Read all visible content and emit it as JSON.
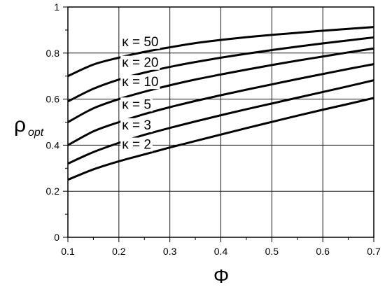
{
  "chart_data": {
    "type": "line",
    "title": "",
    "xlabel": "Φ",
    "ylabel_main": "ρ",
    "ylabel_sub": "opt",
    "xlim": [
      0.1,
      0.7
    ],
    "ylim": [
      0,
      1
    ],
    "grid": true,
    "x_ticks": [
      "0.1",
      "0.2",
      "0.3",
      "0.4",
      "0.5",
      "0.6",
      "0.7"
    ],
    "y_ticks": [
      "0",
      "0.2",
      "0.4",
      "0.6",
      "0.8",
      "1"
    ],
    "series": [
      {
        "name": "κ = 50",
        "x": [
          0.1,
          0.15,
          0.2,
          0.25,
          0.3,
          0.35,
          0.4,
          0.45,
          0.5,
          0.55,
          0.6,
          0.65,
          0.7
        ],
        "y": [
          0.7,
          0.75,
          0.78,
          0.805,
          0.825,
          0.843,
          0.857,
          0.869,
          0.879,
          0.888,
          0.897,
          0.905,
          0.913
        ]
      },
      {
        "name": "κ = 20",
        "x": [
          0.1,
          0.15,
          0.2,
          0.25,
          0.3,
          0.35,
          0.4,
          0.45,
          0.5,
          0.55,
          0.6,
          0.65,
          0.7
        ],
        "y": [
          0.59,
          0.645,
          0.685,
          0.715,
          0.74,
          0.761,
          0.78,
          0.797,
          0.813,
          0.828,
          0.842,
          0.855,
          0.868
        ]
      },
      {
        "name": "κ = 10",
        "x": [
          0.1,
          0.15,
          0.2,
          0.25,
          0.3,
          0.35,
          0.4,
          0.45,
          0.5,
          0.55,
          0.6,
          0.65,
          0.7
        ],
        "y": [
          0.5,
          0.56,
          0.6,
          0.632,
          0.66,
          0.685,
          0.707,
          0.728,
          0.748,
          0.767,
          0.785,
          0.803,
          0.82
        ]
      },
      {
        "name": "κ = 5",
        "x": [
          0.1,
          0.15,
          0.2,
          0.25,
          0.3,
          0.35,
          0.4,
          0.45,
          0.5,
          0.55,
          0.6,
          0.65,
          0.7
        ],
        "y": [
          0.4,
          0.46,
          0.5,
          0.535,
          0.565,
          0.592,
          0.617,
          0.641,
          0.664,
          0.687,
          0.709,
          0.731,
          0.752
        ]
      },
      {
        "name": "κ = 3",
        "x": [
          0.1,
          0.15,
          0.2,
          0.25,
          0.3,
          0.35,
          0.4,
          0.45,
          0.5,
          0.55,
          0.6,
          0.65,
          0.7
        ],
        "y": [
          0.32,
          0.37,
          0.41,
          0.445,
          0.475,
          0.503,
          0.53,
          0.556,
          0.581,
          0.606,
          0.631,
          0.656,
          0.682
        ]
      },
      {
        "name": "κ = 2",
        "x": [
          0.1,
          0.15,
          0.2,
          0.25,
          0.3,
          0.35,
          0.4,
          0.45,
          0.5,
          0.55,
          0.6,
          0.65,
          0.7
        ],
        "y": [
          0.25,
          0.295,
          0.33,
          0.36,
          0.39,
          0.418,
          0.446,
          0.474,
          0.501,
          0.528,
          0.554,
          0.579,
          0.605
        ]
      }
    ]
  }
}
